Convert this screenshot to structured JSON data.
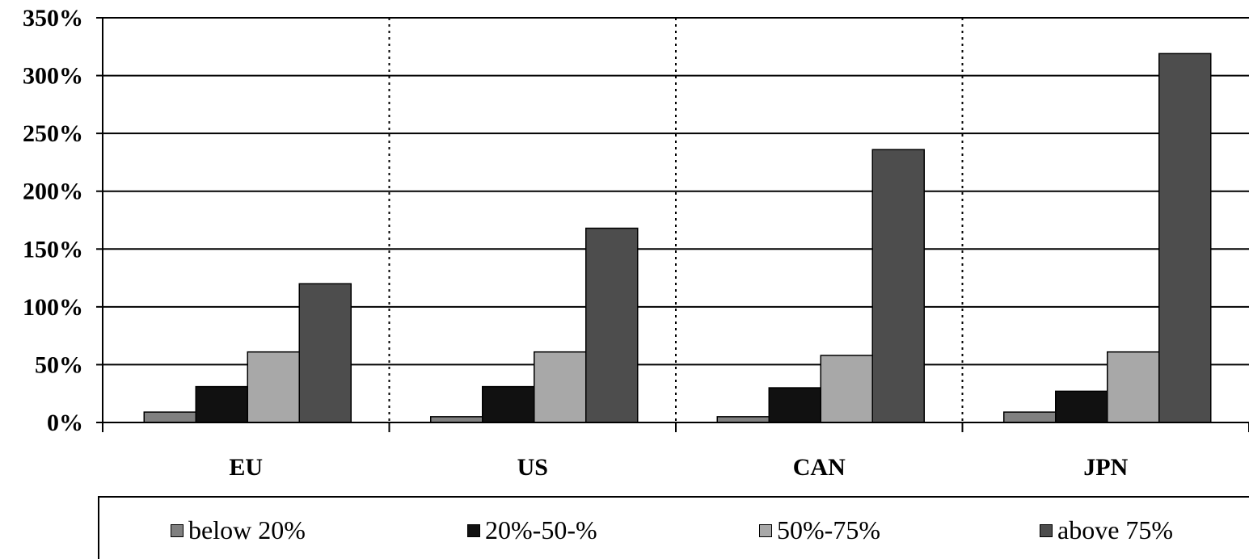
{
  "chart_data": {
    "type": "bar",
    "categories": [
      "EU",
      "US",
      "CAN",
      "JPN"
    ],
    "series": [
      {
        "name": "below 20%",
        "color": "#808080",
        "values": [
          9,
          5,
          5,
          9
        ]
      },
      {
        "name": "20%-50-%",
        "color": "#111111",
        "values": [
          31,
          31,
          30,
          27
        ]
      },
      {
        "name": "50%-75%",
        "color": "#a8a8a8",
        "values": [
          61,
          61,
          58,
          61
        ]
      },
      {
        "name": "above 75%",
        "color": "#4d4d4d",
        "values": [
          120,
          168,
          236,
          319
        ]
      }
    ],
    "y_ticks": [
      "0%",
      "50%",
      "100%",
      "150%",
      "200%",
      "250%",
      "300%",
      "350%"
    ],
    "ylim": [
      0,
      350
    ],
    "grid": true,
    "category_separators": "dotted",
    "legend_position": "bottom"
  }
}
